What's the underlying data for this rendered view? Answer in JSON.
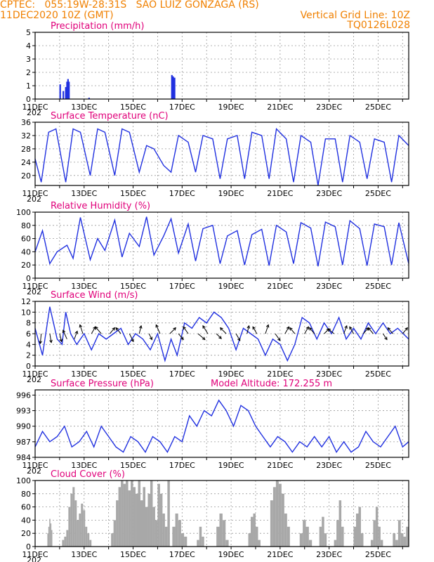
{
  "header": {
    "line1_left": "CPTEC:   055:19W-28:31S   SAO LUIZ GONZAGA (RS)",
    "line2_left": "11DEC2020 10Z (GMT)",
    "line2_right": "Vertical Grid Line: 10Z",
    "line3_right": "TQ0126L028"
  },
  "colors": {
    "header": "#f08000",
    "title": "#e0007a",
    "series": "#2030e0",
    "cloud": "#a8a8a8",
    "grid": "#999999"
  },
  "x_axis": {
    "labels": [
      "11DEC",
      "13DEC",
      "15DEC",
      "17DEC",
      "19DEC",
      "21DEC",
      "23DEC",
      "25DEC"
    ],
    "year_fragment": "202"
  },
  "chart_data": [
    {
      "id": "precip",
      "type": "bar",
      "title": "Precipitation (mm/h)",
      "ylim": [
        0,
        5
      ],
      "yticks": [
        0,
        1,
        2,
        3,
        4,
        5
      ],
      "x_unit": "days since 11DEC 10Z",
      "points": [
        [
          1.02,
          1.1
        ],
        [
          1.15,
          0.6
        ],
        [
          1.25,
          0.9
        ],
        [
          1.3,
          1.3
        ],
        [
          1.34,
          1.5
        ],
        [
          1.38,
          1.3
        ],
        [
          2.2,
          0.1
        ],
        [
          5.58,
          1.8
        ],
        [
          5.63,
          1.7
        ],
        [
          5.69,
          1.6
        ]
      ]
    },
    {
      "id": "temp",
      "type": "line",
      "title": "Surface Temperature (nC)",
      "ylim": [
        17,
        36
      ],
      "yticks": [
        20,
        24,
        28,
        32,
        36
      ],
      "x": [
        0,
        0.25,
        0.55,
        0.85,
        1.25,
        1.55,
        1.85,
        2.25,
        2.55,
        2.85,
        3.25,
        3.55,
        3.85,
        4.25,
        4.55,
        4.85,
        5.25,
        5.55,
        5.85,
        6.25,
        6.55,
        6.85,
        7.25,
        7.55,
        7.85,
        8.25,
        8.55,
        8.85,
        9.25,
        9.55,
        9.85,
        10.25,
        10.55,
        10.85,
        11.25,
        11.55,
        11.85,
        12.25,
        12.55,
        12.85,
        13.25,
        13.55,
        13.85,
        14.25,
        14.55,
        14.85,
        15.25
      ],
      "y": [
        25,
        18,
        33,
        34,
        18,
        34,
        33,
        20,
        34,
        33,
        20,
        34,
        33,
        21,
        29,
        28,
        23,
        21,
        32,
        30,
        21,
        32,
        31,
        19,
        31,
        32,
        19,
        33,
        32,
        19,
        34,
        31,
        18,
        32,
        30,
        17,
        31,
        31,
        18,
        32,
        30,
        19,
        31,
        30,
        18,
        32,
        29
      ]
    },
    {
      "id": "rh",
      "type": "line",
      "title": "Relative Humidity (%)",
      "ylim": [
        0,
        100
      ],
      "yticks": [
        0,
        20,
        40,
        60,
        80,
        100
      ],
      "x": [
        0,
        0.3,
        0.6,
        0.9,
        1.3,
        1.55,
        1.85,
        2.25,
        2.55,
        2.85,
        3.25,
        3.55,
        3.85,
        4.25,
        4.55,
        4.85,
        5.25,
        5.55,
        5.85,
        6.25,
        6.55,
        6.85,
        7.25,
        7.55,
        7.85,
        8.25,
        8.55,
        8.85,
        9.25,
        9.55,
        9.85,
        10.25,
        10.55,
        10.85,
        11.25,
        11.55,
        11.85,
        12.25,
        12.55,
        12.85,
        13.25,
        13.55,
        13.85,
        14.25,
        14.55,
        14.85,
        15.25
      ],
      "y": [
        40,
        72,
        22,
        40,
        50,
        30,
        92,
        28,
        60,
        42,
        88,
        32,
        68,
        48,
        93,
        35,
        64,
        90,
        38,
        82,
        26,
        75,
        80,
        22,
        64,
        72,
        20,
        66,
        74,
        19,
        80,
        70,
        22,
        84,
        76,
        18,
        85,
        78,
        20,
        87,
        75,
        19,
        82,
        78,
        20,
        84,
        22
      ]
    },
    {
      "id": "wind",
      "type": "line",
      "title": "Surface Wind (m/s)",
      "ylim": [
        0,
        12
      ],
      "yticks": [
        0,
        2,
        4,
        6,
        8,
        10,
        12
      ],
      "x": [
        0,
        0.3,
        0.6,
        0.9,
        1.1,
        1.25,
        1.45,
        1.7,
        2.0,
        2.3,
        2.6,
        2.9,
        3.2,
        3.5,
        3.8,
        4.1,
        4.4,
        4.7,
        5.0,
        5.3,
        5.55,
        5.8,
        6.1,
        6.4,
        6.7,
        7.0,
        7.3,
        7.6,
        7.9,
        8.2,
        8.5,
        8.8,
        9.1,
        9.4,
        9.7,
        10.0,
        10.3,
        10.6,
        10.9,
        11.2,
        11.5,
        11.8,
        12.1,
        12.4,
        12.7,
        13.0,
        13.3,
        13.6,
        13.9,
        14.2,
        14.5,
        14.8,
        15.25
      ],
      "y": [
        7,
        2,
        11,
        5,
        4,
        10,
        6,
        4,
        6,
        3,
        6,
        5,
        6,
        7,
        4,
        6,
        5,
        3,
        6,
        1,
        5,
        2,
        8,
        7,
        9,
        8,
        10,
        9,
        7,
        3,
        7,
        6,
        5,
        2,
        5,
        4,
        1,
        4,
        9,
        8,
        5,
        8,
        6,
        9,
        5,
        7,
        5,
        8,
        6,
        8,
        6,
        7,
        5
      ],
      "barbs": [
        [
          0.25,
          6,
          -0.1,
          -1
        ],
        [
          0.6,
          6,
          0.15,
          -0.9
        ],
        [
          1.0,
          6,
          0.2,
          -0.8
        ],
        [
          1.3,
          5,
          -0.4,
          0.9
        ],
        [
          1.6,
          5,
          0.3,
          0.8
        ],
        [
          1.95,
          6,
          -0.3,
          0.9
        ],
        [
          2.3,
          6,
          0.4,
          0.7
        ],
        [
          2.7,
          6,
          -0.6,
          0.7
        ],
        [
          3.05,
          6,
          0.5,
          0.6
        ],
        [
          3.5,
          6,
          -0.5,
          0.6
        ],
        [
          3.85,
          6,
          0.4,
          -0.8
        ],
        [
          4.25,
          6,
          0.2,
          0.8
        ],
        [
          4.65,
          6,
          0.3,
          -0.6
        ],
        [
          5.1,
          6,
          -0.4,
          0.9
        ],
        [
          5.5,
          6,
          0.6,
          0.6
        ],
        [
          5.85,
          6,
          0.5,
          -0.6
        ],
        [
          6.25,
          6,
          -0.5,
          0.7
        ],
        [
          6.65,
          6,
          0.7,
          -0.6
        ],
        [
          7.05,
          6,
          -0.5,
          0.8
        ],
        [
          7.4,
          6,
          0.5,
          -0.5
        ],
        [
          7.8,
          6,
          -0.6,
          0.6
        ],
        [
          8.2,
          6,
          0.4,
          -0.7
        ],
        [
          8.65,
          6,
          0.2,
          0.8
        ],
        [
          9.05,
          6,
          -0.4,
          0.7
        ],
        [
          9.4,
          6,
          0.3,
          0.9
        ],
        [
          9.8,
          6,
          0.5,
          -0.7
        ],
        [
          10.2,
          6,
          0.4,
          0.7
        ],
        [
          10.6,
          6,
          -0.5,
          0.6
        ],
        [
          11.0,
          6,
          0.4,
          0.7
        ],
        [
          11.4,
          6,
          -0.5,
          0.6
        ],
        [
          11.8,
          6,
          0.5,
          0.5
        ],
        [
          12.2,
          6,
          -0.6,
          0.5
        ],
        [
          12.6,
          6,
          0.3,
          0.8
        ],
        [
          13.0,
          6,
          -0.4,
          0.7
        ],
        [
          13.4,
          6,
          0.5,
          0.6
        ],
        [
          13.8,
          6,
          -0.5,
          0.6
        ],
        [
          14.2,
          6,
          0.4,
          -0.6
        ],
        [
          14.6,
          6,
          -0.5,
          0.6
        ],
        [
          15.0,
          6,
          0.5,
          0.6
        ]
      ]
    },
    {
      "id": "pressure",
      "type": "line",
      "title": "Surface Pressure (hPa)",
      "ylim": [
        984,
        997
      ],
      "yticks": [
        984,
        987,
        990,
        993,
        996
      ],
      "x": [
        0,
        0.3,
        0.6,
        0.9,
        1.2,
        1.5,
        1.8,
        2.1,
        2.4,
        2.7,
        3.0,
        3.3,
        3.6,
        3.9,
        4.2,
        4.5,
        4.8,
        5.1,
        5.4,
        5.7,
        6.0,
        6.3,
        6.6,
        6.9,
        7.2,
        7.5,
        7.8,
        8.1,
        8.4,
        8.7,
        9.0,
        9.3,
        9.6,
        9.9,
        10.2,
        10.5,
        10.8,
        11.1,
        11.4,
        11.7,
        12.0,
        12.3,
        12.6,
        12.9,
        13.2,
        13.5,
        13.8,
        14.1,
        14.4,
        14.7,
        15.0,
        15.25
      ],
      "y": [
        986,
        989,
        987,
        988,
        990,
        986,
        987,
        989,
        986,
        990,
        988,
        986,
        985,
        988,
        987,
        985,
        988,
        987,
        985,
        988,
        987,
        992,
        990,
        993,
        992,
        995,
        993,
        990,
        994,
        993,
        990,
        988,
        986,
        988,
        987,
        985,
        987,
        986,
        988,
        986,
        988,
        985,
        987,
        985,
        986,
        989,
        987,
        986,
        988,
        990,
        986,
        987
      ],
      "model_altitude": "Model Altitude: 172.255  m"
    },
    {
      "id": "cloud",
      "type": "bar",
      "title": "Cloud Cover (%)",
      "ylim": [
        0,
        100
      ],
      "yticks": [
        0,
        20,
        40,
        60,
        80,
        100
      ],
      "segments": [
        {
          "x0": 0.5,
          "x1": 0.7,
          "y": [
            20,
            30,
            42,
            35,
            25
          ]
        },
        {
          "x0": 1.1,
          "x1": 2.3,
          "y": [
            10,
            15,
            25,
            60,
            80,
            90,
            70,
            40,
            50,
            65,
            55,
            30,
            20,
            10
          ]
        },
        {
          "x0": 3.1,
          "x1": 5.5,
          "y": [
            20,
            40,
            70,
            90,
            100,
            95,
            100,
            85,
            100,
            90,
            80,
            100,
            70,
            90,
            60,
            80,
            100,
            60,
            40,
            95,
            80,
            50,
            30,
            100
          ]
        },
        {
          "x0": 5.6,
          "x1": 6.2,
          "y": [
            30,
            50,
            40,
            20,
            15
          ]
        },
        {
          "x0": 6.6,
          "x1": 6.9,
          "y": [
            10,
            30,
            15
          ]
        },
        {
          "x0": 7.4,
          "x1": 7.9,
          "y": [
            30,
            50,
            40,
            10
          ]
        },
        {
          "x0": 8.7,
          "x1": 9.2,
          "y": [
            20,
            45,
            50,
            30,
            10
          ]
        },
        {
          "x0": 9.6,
          "x1": 10.4,
          "y": [
            70,
            90,
            100,
            95,
            80,
            50,
            30
          ]
        },
        {
          "x0": 10.8,
          "x1": 11.3,
          "y": [
            20,
            40,
            30,
            10
          ]
        },
        {
          "x0": 11.6,
          "x1": 11.9,
          "y": [
            30,
            45,
            20
          ]
        },
        {
          "x0": 12.2,
          "x1": 12.6,
          "y": [
            10,
            40,
            70,
            30
          ]
        },
        {
          "x0": 13.0,
          "x1": 13.4,
          "y": [
            30,
            50,
            60,
            20
          ]
        },
        {
          "x0": 13.7,
          "x1": 14.2,
          "y": [
            10,
            40,
            60,
            30,
            10
          ]
        },
        {
          "x0": 14.6,
          "x1": 15.25,
          "y": [
            20,
            10,
            40,
            20,
            15,
            30
          ]
        }
      ]
    }
  ]
}
